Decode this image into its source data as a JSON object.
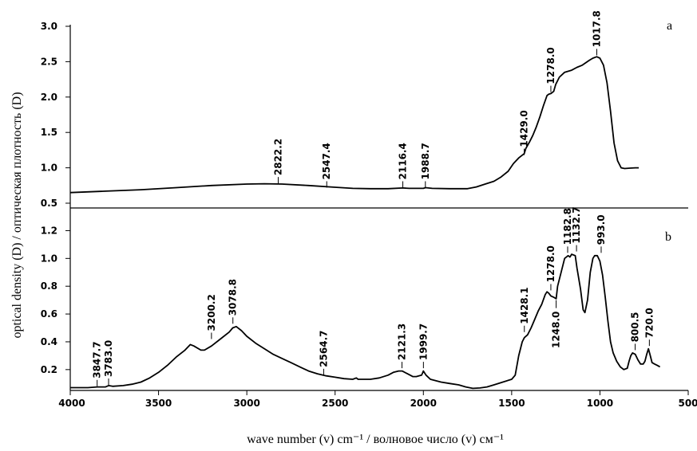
{
  "chart_data": {
    "type": "line",
    "xlabel": "wave number (v) cm⁻¹ / волновое число (v) см⁻¹",
    "ylabel": "optical density (D) / оптическая плотность (D)",
    "x_axis": {
      "reversed": true,
      "range": [
        4000,
        500
      ],
      "ticks": [
        "4000",
        "3500",
        "3000",
        "2500",
        "2000",
        "1500",
        "1000",
        "500"
      ]
    },
    "line_color": "#000000",
    "panels": [
      {
        "id": "a",
        "label": "a",
        "ylim": [
          0.5,
          3.0
        ],
        "y_ticks": [
          "0.5",
          "1.0",
          "1.5",
          "2.0",
          "2.5",
          "3.0"
        ],
        "series": [
          {
            "name": "a",
            "points": [
              [
                4000,
                0.65
              ],
              [
                3800,
                0.67
              ],
              [
                3600,
                0.69
              ],
              [
                3400,
                0.72
              ],
              [
                3200,
                0.75
              ],
              [
                3000,
                0.77
              ],
              [
                2900,
                0.775
              ],
              [
                2800,
                0.77
              ],
              [
                2650,
                0.75
              ],
              [
                2500,
                0.725
              ],
              [
                2400,
                0.71
              ],
              [
                2300,
                0.705
              ],
              [
                2200,
                0.705
              ],
              [
                2116,
                0.715
              ],
              [
                2080,
                0.71
              ],
              [
                2000,
                0.71
              ],
              [
                1988,
                0.72
              ],
              [
                1950,
                0.71
              ],
              [
                1850,
                0.705
              ],
              [
                1750,
                0.705
              ],
              [
                1700,
                0.73
              ],
              [
                1650,
                0.77
              ],
              [
                1600,
                0.81
              ],
              [
                1560,
                0.87
              ],
              [
                1520,
                0.95
              ],
              [
                1490,
                1.06
              ],
              [
                1460,
                1.14
              ],
              [
                1429,
                1.2
              ],
              [
                1420,
                1.27
              ],
              [
                1400,
                1.36
              ],
              [
                1380,
                1.46
              ],
              [
                1360,
                1.58
              ],
              [
                1340,
                1.72
              ],
              [
                1320,
                1.88
              ],
              [
                1300,
                2.02
              ],
              [
                1290,
                2.04
              ],
              [
                1278,
                2.05
              ],
              [
                1262,
                2.08
              ],
              [
                1250,
                2.18
              ],
              [
                1230,
                2.28
              ],
              [
                1200,
                2.35
              ],
              [
                1160,
                2.38
              ],
              [
                1130,
                2.42
              ],
              [
                1100,
                2.45
              ],
              [
                1060,
                2.52
              ],
              [
                1040,
                2.55
              ],
              [
                1018,
                2.57
              ],
              [
                1000,
                2.55
              ],
              [
                980,
                2.45
              ],
              [
                960,
                2.2
              ],
              [
                940,
                1.8
              ],
              [
                920,
                1.35
              ],
              [
                900,
                1.1
              ],
              [
                880,
                1.0
              ],
              [
                860,
                0.99
              ],
              [
                830,
                0.995
              ],
              [
                800,
                1.0
              ],
              [
                780,
                1.0
              ]
            ]
          }
        ],
        "peaks": [
          {
            "x": 2822.2,
            "label": "2822.2",
            "text_value": 0.78
          },
          {
            "x": 2547.4,
            "label": "2547.4",
            "text_value": 0.72
          },
          {
            "x": 2116.4,
            "label": "2116.4",
            "text_value": 0.72
          },
          {
            "x": 1988.7,
            "label": "1988.7",
            "text_value": 0.72
          },
          {
            "x": 1429.0,
            "label": "1429.0",
            "text_value": 1.18
          },
          {
            "x": 1278.0,
            "label": "1278.0",
            "text_value": 2.07
          },
          {
            "x": 1017.8,
            "label": "1017.8",
            "text_value": 2.59
          }
        ]
      },
      {
        "id": "b",
        "label": "b",
        "ylim": [
          0.05,
          1.3
        ],
        "y_ticks": [
          "0.2",
          "0.4",
          "0.6",
          "0.8",
          "1.0",
          "1.2"
        ],
        "series": [
          {
            "name": "b",
            "points": [
              [
                4000,
                0.07
              ],
              [
                3900,
                0.07
              ],
              [
                3847.7,
                0.075
              ],
              [
                3800,
                0.075
              ],
              [
                3783,
                0.085
              ],
              [
                3760,
                0.08
              ],
              [
                3700,
                0.085
              ],
              [
                3650,
                0.095
              ],
              [
                3600,
                0.11
              ],
              [
                3550,
                0.14
              ],
              [
                3500,
                0.18
              ],
              [
                3450,
                0.23
              ],
              [
                3400,
                0.29
              ],
              [
                3350,
                0.34
              ],
              [
                3320,
                0.38
              ],
              [
                3300,
                0.37
              ],
              [
                3260,
                0.34
              ],
              [
                3240,
                0.34
              ],
              [
                3200,
                0.37
              ],
              [
                3150,
                0.42
              ],
              [
                3100,
                0.47
              ],
              [
                3080,
                0.5
              ],
              [
                3060,
                0.51
              ],
              [
                3030,
                0.48
              ],
              [
                3000,
                0.44
              ],
              [
                2950,
                0.39
              ],
              [
                2900,
                0.35
              ],
              [
                2850,
                0.31
              ],
              [
                2800,
                0.28
              ],
              [
                2750,
                0.25
              ],
              [
                2700,
                0.22
              ],
              [
                2650,
                0.19
              ],
              [
                2600,
                0.17
              ],
              [
                2550,
                0.155
              ],
              [
                2500,
                0.145
              ],
              [
                2450,
                0.135
              ],
              [
                2400,
                0.13
              ],
              [
                2380,
                0.14
              ],
              [
                2370,
                0.13
              ],
              [
                2300,
                0.13
              ],
              [
                2250,
                0.14
              ],
              [
                2200,
                0.16
              ],
              [
                2170,
                0.18
              ],
              [
                2140,
                0.19
              ],
              [
                2120,
                0.19
              ],
              [
                2090,
                0.17
              ],
              [
                2060,
                0.15
              ],
              [
                2040,
                0.15
              ],
              [
                2010,
                0.16
              ],
              [
                2000,
                0.19
              ],
              [
                1985,
                0.16
              ],
              [
                1960,
                0.13
              ],
              [
                1900,
                0.11
              ],
              [
                1850,
                0.1
              ],
              [
                1800,
                0.09
              ],
              [
                1760,
                0.075
              ],
              [
                1720,
                0.065
              ],
              [
                1680,
                0.068
              ],
              [
                1640,
                0.075
              ],
              [
                1600,
                0.09
              ],
              [
                1550,
                0.11
              ],
              [
                1500,
                0.13
              ],
              [
                1480,
                0.16
              ],
              [
                1460,
                0.3
              ],
              [
                1440,
                0.4
              ],
              [
                1428,
                0.43
              ],
              [
                1410,
                0.45
              ],
              [
                1390,
                0.5
              ],
              [
                1370,
                0.56
              ],
              [
                1350,
                0.62
              ],
              [
                1330,
                0.67
              ],
              [
                1310,
                0.74
              ],
              [
                1300,
                0.76
              ],
              [
                1290,
                0.75
              ],
              [
                1278,
                0.73
              ],
              [
                1260,
                0.72
              ],
              [
                1248,
                0.71
              ],
              [
                1240,
                0.8
              ],
              [
                1220,
                0.9
              ],
              [
                1200,
                1.0
              ],
              [
                1190,
                1.01
              ],
              [
                1180,
                1.02
              ],
              [
                1170,
                1.01
              ],
              [
                1160,
                1.03
              ],
              [
                1140,
                1.02
              ],
              [
                1130,
                0.93
              ],
              [
                1110,
                0.78
              ],
              [
                1095,
                0.63
              ],
              [
                1085,
                0.61
              ],
              [
                1070,
                0.7
              ],
              [
                1055,
                0.9
              ],
              [
                1040,
                1.0
              ],
              [
                1030,
                1.02
              ],
              [
                1015,
                1.02
              ],
              [
                1000,
                0.98
              ],
              [
                985,
                0.88
              ],
              [
                970,
                0.72
              ],
              [
                955,
                0.55
              ],
              [
                940,
                0.4
              ],
              [
                925,
                0.32
              ],
              [
                905,
                0.26
              ],
              [
                885,
                0.22
              ],
              [
                865,
                0.2
              ],
              [
                845,
                0.21
              ],
              [
                835,
                0.26
              ],
              [
                825,
                0.3
              ],
              [
                815,
                0.32
              ],
              [
                800,
                0.31
              ],
              [
                785,
                0.27
              ],
              [
                770,
                0.24
              ],
              [
                755,
                0.24
              ],
              [
                745,
                0.26
              ],
              [
                735,
                0.31
              ],
              [
                725,
                0.35
              ],
              [
                715,
                0.3
              ],
              [
                705,
                0.25
              ],
              [
                690,
                0.24
              ],
              [
                675,
                0.23
              ],
              [
                660,
                0.22
              ]
            ]
          }
        ],
        "peaks": [
          {
            "x": 3847.7,
            "label": "3847.7",
            "text_value": 0.08
          },
          {
            "x": 3783.0,
            "label": "3783.0",
            "text_value": 0.09
          },
          {
            "x": 3200.2,
            "label": "3200.2",
            "text_value": 0.42
          },
          {
            "x": 3078.8,
            "label": "3078.8",
            "text_value": 0.53
          },
          {
            "x": 2564.7,
            "label": "2564.7",
            "text_value": 0.16
          },
          {
            "x": 2121.3,
            "label": "2121.3",
            "text_value": 0.21
          },
          {
            "x": 1999.7,
            "label": "1999.7",
            "text_value": 0.21
          },
          {
            "x": 1428.1,
            "label": "1428.1",
            "text_value": 0.47
          },
          {
            "x": 1278.0,
            "label": "1278.0",
            "text_value": 0.77
          },
          {
            "x": 1248.0,
            "label": "1248.0",
            "text_value": 0.7,
            "below": true
          },
          {
            "x": 1182.8,
            "label": "1182.8",
            "text_value": 1.04
          },
          {
            "x": 1132.7,
            "label": "1132.7",
            "text_value": 1.05
          },
          {
            "x": 993.0,
            "label": "993.0",
            "text_value": 1.04
          },
          {
            "x": 800.5,
            "label": "800.5",
            "text_value": 0.34
          },
          {
            "x": 720.0,
            "label": "720.0",
            "text_value": 0.37
          }
        ]
      }
    ]
  }
}
